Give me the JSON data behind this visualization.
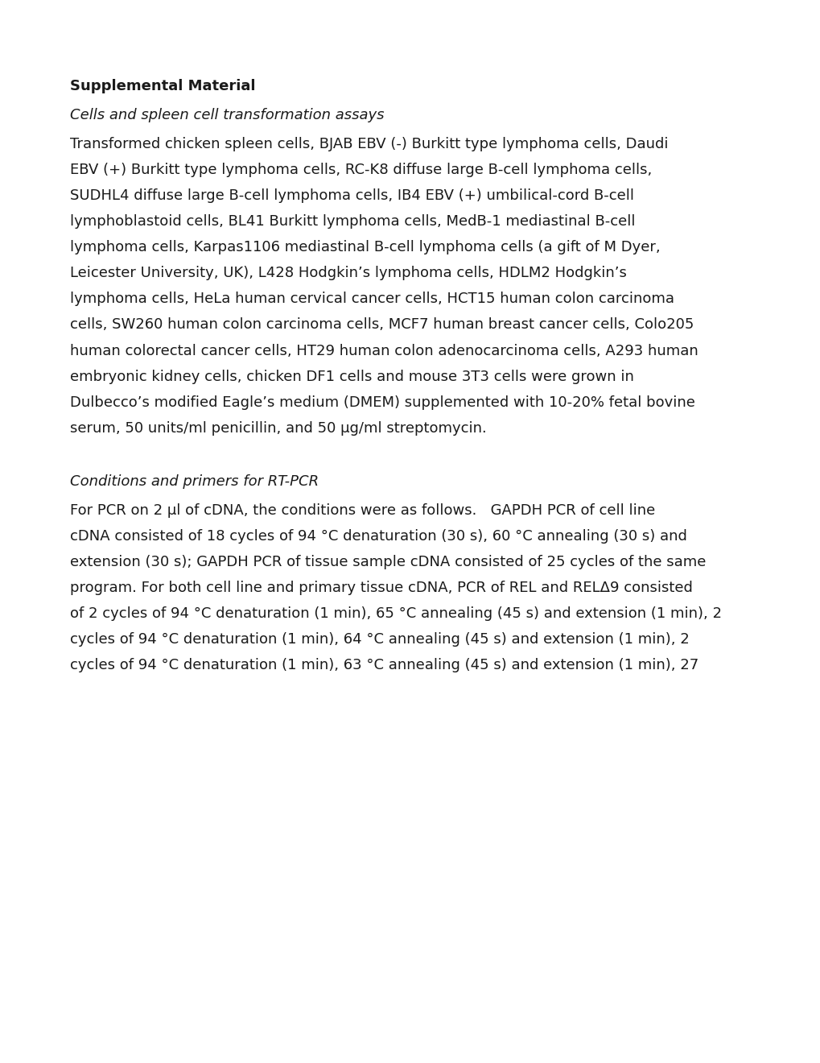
{
  "background_color": "#ffffff",
  "text_color": "#1a1a1a",
  "page_width": 10.2,
  "page_height": 13.2,
  "dpi": 100,
  "font_size_body": 13.0,
  "content": [
    {
      "type": "bold",
      "text": "Supplemental Material"
    },
    {
      "type": "gap",
      "pts": 18
    },
    {
      "type": "italic",
      "text": "Cells and spleen cell transformation assays"
    },
    {
      "type": "gap",
      "pts": 18
    },
    {
      "type": "body",
      "text": "Transformed chicken spleen cells, BJAB EBV (-) Burkitt type lymphoma cells, Daudi"
    },
    {
      "type": "gap",
      "pts": 14
    },
    {
      "type": "body",
      "text": "EBV (+) Burkitt type lymphoma cells, RC-K8 diffuse large B-cell lymphoma cells,"
    },
    {
      "type": "gap",
      "pts": 14
    },
    {
      "type": "body",
      "text": "SUDHL4 diffuse large B-cell lymphoma cells, IB4 EBV (+) umbilical-cord B-cell"
    },
    {
      "type": "gap",
      "pts": 14
    },
    {
      "type": "body",
      "text": "lymphoblastoid cells, BL41 Burkitt lymphoma cells, MedB-1 mediastinal B-cell"
    },
    {
      "type": "gap",
      "pts": 14
    },
    {
      "type": "body",
      "text": "lymphoma cells, Karpas1106 mediastinal B-cell lymphoma cells (a gift of M Dyer,"
    },
    {
      "type": "gap",
      "pts": 14
    },
    {
      "type": "body",
      "text": "Leicester University, UK), L428 Hodgkin’s lymphoma cells, HDLM2 Hodgkin’s"
    },
    {
      "type": "gap",
      "pts": 14
    },
    {
      "type": "body",
      "text": "lymphoma cells, HeLa human cervical cancer cells, HCT15 human colon carcinoma"
    },
    {
      "type": "gap",
      "pts": 14
    },
    {
      "type": "body",
      "text": "cells, SW260 human colon carcinoma cells, MCF7 human breast cancer cells, Colo205"
    },
    {
      "type": "gap",
      "pts": 14
    },
    {
      "type": "body",
      "text": "human colorectal cancer cells, HT29 human colon adenocarcinoma cells, A293 human"
    },
    {
      "type": "gap",
      "pts": 14
    },
    {
      "type": "body",
      "text": "embryonic kidney cells, chicken DF1 cells and mouse 3T3 cells were grown in"
    },
    {
      "type": "gap",
      "pts": 14
    },
    {
      "type": "body",
      "text": "Dulbecco’s modified Eagle’s medium (DMEM) supplemented with 10-20% fetal bovine"
    },
    {
      "type": "gap",
      "pts": 14
    },
    {
      "type": "body",
      "text": "serum, 50 units/ml penicillin, and 50 μg/ml streptomycin."
    },
    {
      "type": "gap",
      "pts": 48
    },
    {
      "type": "italic",
      "text": "Conditions and primers for RT-PCR"
    },
    {
      "type": "gap",
      "pts": 18
    },
    {
      "type": "body",
      "text": "For PCR on 2 μl of cDNA, the conditions were as follows.   GAPDH PCR of cell line"
    },
    {
      "type": "gap",
      "pts": 14
    },
    {
      "type": "body",
      "text": "cDNA consisted of 18 cycles of 94 °C denaturation (30 s), 60 °C annealing (30 s) and"
    },
    {
      "type": "gap",
      "pts": 14
    },
    {
      "type": "body",
      "text": "extension (30 s); GAPDH PCR of tissue sample cDNA consisted of 25 cycles of the same"
    },
    {
      "type": "gap",
      "pts": 14
    },
    {
      "type": "body",
      "text": "program. For both cell line and primary tissue cDNA, PCR of REL and RELΔ9 consisted"
    },
    {
      "type": "gap",
      "pts": 14
    },
    {
      "type": "body",
      "text": "of 2 cycles of 94 °C denaturation (1 min), 65 °C annealing (45 s) and extension (1 min), 2"
    },
    {
      "type": "gap",
      "pts": 14
    },
    {
      "type": "body",
      "text": "cycles of 94 °C denaturation (1 min), 64 °C annealing (45 s) and extension (1 min), 2"
    },
    {
      "type": "gap",
      "pts": 14
    },
    {
      "type": "body",
      "text": "cycles of 94 °C denaturation (1 min), 63 °C annealing (45 s) and extension (1 min), 27"
    }
  ]
}
